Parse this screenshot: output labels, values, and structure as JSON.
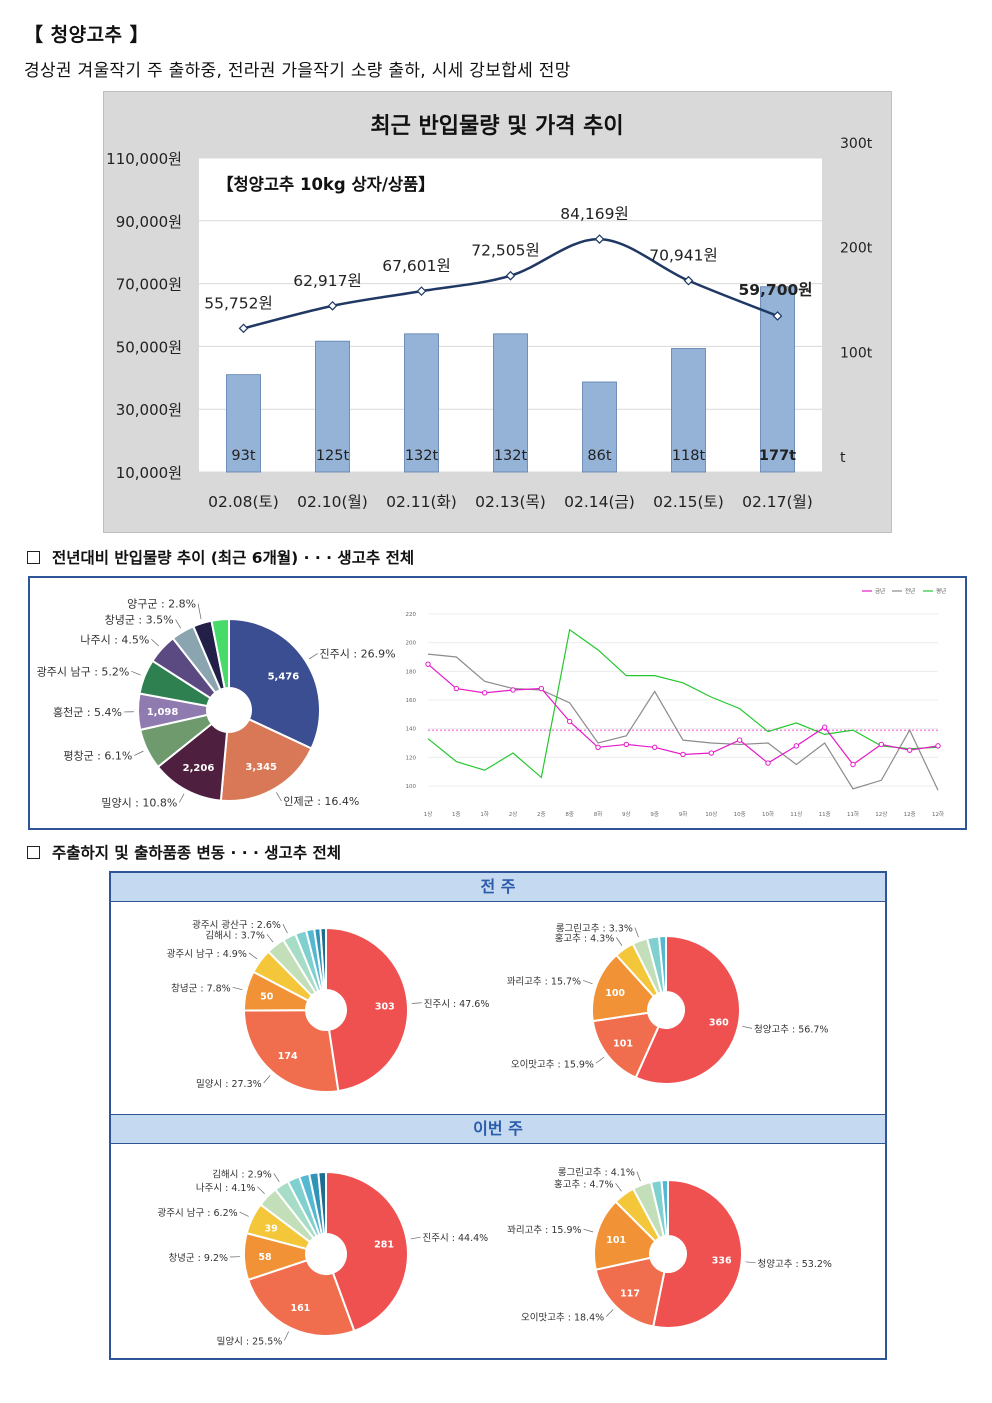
{
  "header": {
    "title": "【 청양고추 】",
    "subtitle": "경상권 겨울작기 주 출하중, 전라권 가을작기 소량 출하, 시세 강보합세 전망"
  },
  "sections": {
    "s2_title": "전년대비 반입물량 추이 (최근 6개월) · · · 생고추 전체",
    "s3_title": "주출하지 및 출하품종 변동 · · · 생고추 전체",
    "prev_week_label": "전 주",
    "this_week_label": "이번 주"
  },
  "chart_data": [
    {
      "type": "bar",
      "title": "최근 반입물량 및 가격 추이",
      "box_label": "【청양고추 10kg 상자/상품】",
      "categories": [
        "02.08(토)",
        "02.10(월)",
        "02.11(화)",
        "02.13(목)",
        "02.14(금)",
        "02.15(토)",
        "02.17(월)"
      ],
      "series": [
        {
          "kind": "bar",
          "axis": "right",
          "values": [
            93,
            125,
            132,
            132,
            86,
            118,
            177
          ],
          "labels": [
            "93t",
            "125t",
            "132t",
            "132t",
            "86t",
            "118t",
            "177t"
          ]
        },
        {
          "kind": "line",
          "axis": "left",
          "values": [
            55752,
            62917,
            67601,
            72505,
            84169,
            70941,
            59700
          ],
          "labels": [
            "55,752원",
            "62,917원",
            "67,601원",
            "72,505원",
            "84,169원",
            "70,941원",
            "59,700원"
          ]
        }
      ],
      "left_axis": {
        "range": [
          10000,
          110000
        ],
        "ticks": [
          "10,000원",
          "30,000원",
          "50,000원",
          "70,000원",
          "90,000원",
          "110,000원"
        ]
      },
      "right_axis": {
        "range": [
          0,
          300
        ],
        "ticks": [
          "t",
          "100t",
          "200t",
          "300t"
        ]
      },
      "colors": {
        "bar": "#95b3d7",
        "line": "#1f3864",
        "panel": "#d9d9d9"
      },
      "grid": true
    },
    {
      "type": "pie",
      "style": "donut",
      "slices": [
        {
          "name": "진주시",
          "percent": 26.9,
          "value": 5476,
          "label": "진주시 : 26.9%",
          "inner": "5,476",
          "color": "#3a4e91"
        },
        {
          "name": "인제군",
          "percent": 16.4,
          "value": 3345,
          "label": "인제군 : 16.4%",
          "inner": "3,345",
          "color": "#d87856"
        },
        {
          "name": "밀양시",
          "percent": 10.8,
          "value": 2206,
          "label": "밀양시 : 10.8%",
          "inner": "2,206",
          "color": "#4e1f3e"
        },
        {
          "name": "평창군",
          "percent": 6.1,
          "label": "평창군 : 6.1%",
          "inner": "",
          "color": "#6f9a6e"
        },
        {
          "name": "홍천군",
          "percent": 5.4,
          "value": 1098,
          "label": "홍천군 : 5.4%",
          "inner": "1,098",
          "color": "#8f7bb0"
        },
        {
          "name": "광주시 남구",
          "percent": 5.2,
          "label": "광주시 남구 : 5.2%",
          "inner": "",
          "color": "#2e8050"
        },
        {
          "name": "나주시",
          "percent": 4.5,
          "label": "나주시 : 4.5%",
          "inner": "",
          "color": "#5b4a82"
        },
        {
          "name": "창녕군",
          "percent": 3.5,
          "label": "창녕군 : 3.5%",
          "inner": "",
          "color": "#8aa4b0"
        },
        {
          "name": "양구군",
          "percent": 2.8,
          "label": "양구군 : 2.8%",
          "inner": "",
          "color": "#221f48"
        },
        {
          "name": "",
          "percent": 2.6,
          "label": "",
          "inner": "",
          "color": "#47dc6a"
        }
      ]
    },
    {
      "type": "line",
      "legend": [
        "금년",
        "전년",
        "평년"
      ],
      "legend_position": "top-right",
      "x": [
        "1상",
        "1중",
        "1하",
        "2상",
        "2중",
        "8중",
        "8하",
        "9상",
        "9중",
        "9하",
        "10상",
        "10중",
        "10하",
        "11상",
        "11중",
        "11하",
        "12상",
        "12중",
        "12하"
      ],
      "ylim": [
        100,
        220
      ],
      "yticks": [
        100,
        120,
        140,
        160,
        180,
        200,
        220
      ],
      "reference_line": 139,
      "series": [
        {
          "name": "금년",
          "color": "#e619c9",
          "values": [
            185,
            168,
            165,
            167,
            168,
            145,
            127,
            129,
            127,
            122,
            123,
            132,
            116,
            128,
            141,
            115,
            129,
            125,
            128
          ]
        },
        {
          "name": "전년",
          "color": "#8c8c8c",
          "values": [
            192,
            190,
            173,
            168,
            167,
            158,
            130,
            135,
            166,
            132,
            130,
            129,
            130,
            115,
            130,
            98,
            104,
            139,
            97
          ]
        },
        {
          "name": "평년",
          "color": "#24c82e",
          "values": [
            133,
            117,
            111,
            123,
            106,
            209,
            195,
            177,
            177,
            172,
            162,
            154,
            138,
            144,
            136,
            139,
            128,
            126,
            127
          ]
        }
      ]
    },
    {
      "type": "pie",
      "style": "donut",
      "group": "전 주",
      "chart": "origin",
      "slices": [
        {
          "name": "진주시",
          "percent": 47.6,
          "value": 303,
          "label": "진주시 : 47.6%",
          "inner": "303",
          "color": "#ef5050"
        },
        {
          "name": "밀양시",
          "percent": 27.3,
          "value": 174,
          "label": "밀양시 : 27.3%",
          "inner": "174",
          "color": "#f06e4e"
        },
        {
          "name": "창녕군",
          "percent": 7.8,
          "value": 50,
          "label": "창녕군 : 7.8%",
          "inner": "50",
          "color": "#f09235"
        },
        {
          "name": "광주시 남구",
          "percent": 4.9,
          "label": "광주시 남구 : 4.9%",
          "inner": "",
          "color": "#f4c63a"
        },
        {
          "name": "김해시",
          "percent": 3.7,
          "label": "김해시 : 3.7%",
          "inner": "",
          "color": "#c3dfb9"
        },
        {
          "name": "광주시 광산구",
          "percent": 2.6,
          "label": "광주시 광산구 : 2.6%",
          "inner": "",
          "color": "#a7dcc6"
        },
        {
          "name": "",
          "percent": 2.2,
          "label": "",
          "inner": "",
          "color": "#7fd0cf"
        },
        {
          "name": "",
          "percent": 1.6,
          "label": "",
          "inner": "",
          "color": "#55b8d2"
        },
        {
          "name": "",
          "percent": 1.2,
          "label": "",
          "inner": "",
          "color": "#2f94b8"
        },
        {
          "name": "",
          "percent": 1.1,
          "label": "",
          "inner": "",
          "color": "#1e6d91"
        }
      ]
    },
    {
      "type": "pie",
      "style": "donut",
      "group": "전 주",
      "chart": "variety",
      "slices": [
        {
          "name": "청양고추",
          "percent": 56.7,
          "value": 360,
          "label": "청양고추 : 56.7%",
          "inner": "360",
          "color": "#ef5050"
        },
        {
          "name": "오이맛고추",
          "percent": 15.9,
          "value": 101,
          "label": "오이맛고추 : 15.9%",
          "inner": "101",
          "color": "#f06e4e"
        },
        {
          "name": "꽈리고추",
          "percent": 15.7,
          "value": 100,
          "label": "꽈리고추 : 15.7%",
          "inner": "100",
          "color": "#f09235"
        },
        {
          "name": "홍고추",
          "percent": 4.3,
          "label": "홍고추 : 4.3%",
          "inner": "",
          "color": "#f4c63a"
        },
        {
          "name": "롱그린고추",
          "percent": 3.3,
          "label": "롱그린고추 : 3.3%",
          "inner": "",
          "color": "#c3dfb9"
        },
        {
          "name": "",
          "percent": 2.6,
          "label": "",
          "inner": "",
          "color": "#7fd0cf"
        },
        {
          "name": "",
          "percent": 1.5,
          "label": "",
          "inner": "",
          "color": "#55b8d2"
        }
      ]
    },
    {
      "type": "pie",
      "style": "donut",
      "group": "이번 주",
      "chart": "origin",
      "slices": [
        {
          "name": "진주시",
          "percent": 44.4,
          "value": 281,
          "label": "진주시 : 44.4%",
          "inner": "281",
          "color": "#ef5050"
        },
        {
          "name": "밀양시",
          "percent": 25.5,
          "value": 161,
          "label": "밀양시 : 25.5%",
          "inner": "161",
          "color": "#f06e4e"
        },
        {
          "name": "창녕군",
          "percent": 9.2,
          "value": 58,
          "label": "창녕군 : 9.2%",
          "inner": "58",
          "color": "#f09235"
        },
        {
          "name": "광주시 남구",
          "percent": 6.2,
          "value": 39,
          "label": "광주시 남구 : 6.2%",
          "inner": "39",
          "color": "#f4c63a"
        },
        {
          "name": "나주시",
          "percent": 4.1,
          "label": "나주시 : 4.1%",
          "inner": "",
          "color": "#c3dfb9"
        },
        {
          "name": "김해시",
          "percent": 2.9,
          "label": "김해시 : 2.9%",
          "inner": "",
          "color": "#a7dcc6"
        },
        {
          "name": "",
          "percent": 2.4,
          "label": "",
          "inner": "",
          "color": "#7fd0cf"
        },
        {
          "name": "",
          "percent": 2.0,
          "label": "",
          "inner": "",
          "color": "#55b8d2"
        },
        {
          "name": "",
          "percent": 1.8,
          "label": "",
          "inner": "",
          "color": "#2f94b8"
        },
        {
          "name": "",
          "percent": 1.5,
          "label": "",
          "inner": "",
          "color": "#1e6d91"
        }
      ]
    },
    {
      "type": "pie",
      "style": "donut",
      "group": "이번 주",
      "chart": "variety",
      "slices": [
        {
          "name": "청양고추",
          "percent": 53.2,
          "value": 336,
          "label": "청양고추 : 53.2%",
          "inner": "336",
          "color": "#ef5050"
        },
        {
          "name": "오이맛고추",
          "percent": 18.4,
          "value": 117,
          "label": "오이맛고추 : 18.4%",
          "inner": "117",
          "color": "#f06e4e"
        },
        {
          "name": "꽈리고추",
          "percent": 15.9,
          "value": 101,
          "label": "꽈리고추 : 15.9%",
          "inner": "101",
          "color": "#f09235"
        },
        {
          "name": "홍고추",
          "percent": 4.7,
          "label": "홍고추 : 4.7%",
          "inner": "",
          "color": "#f4c63a"
        },
        {
          "name": "롱그린고추",
          "percent": 4.1,
          "label": "롱그린고추 : 4.1%",
          "inner": "",
          "color": "#c3dfb9"
        },
        {
          "name": "",
          "percent": 2.3,
          "label": "",
          "inner": "",
          "color": "#7fd0cf"
        },
        {
          "name": "",
          "percent": 1.4,
          "label": "",
          "inner": "",
          "color": "#55b8d2"
        }
      ]
    }
  ]
}
